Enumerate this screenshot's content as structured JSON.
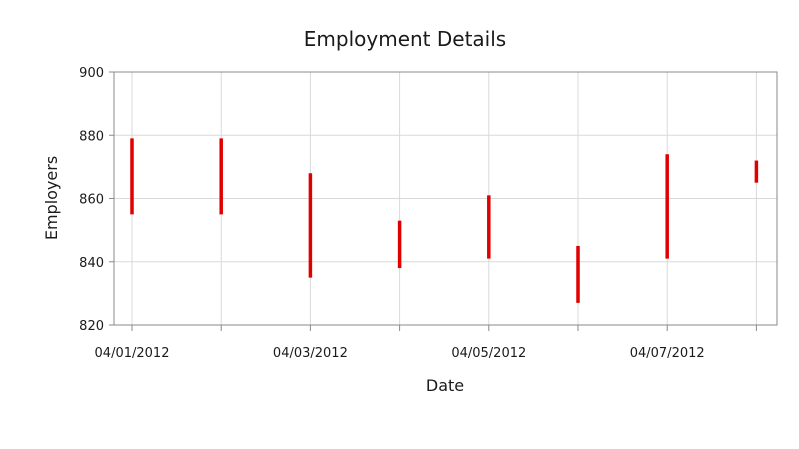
{
  "chart_data": {
    "type": "range-bar",
    "title": "Employment Details",
    "xlabel": "Date",
    "ylabel": "Employers",
    "x": [
      "04/01/2012",
      "04/02/2012",
      "04/03/2012",
      "04/04/2012",
      "04/05/2012",
      "04/06/2012",
      "04/07/2012",
      "04/08/2012"
    ],
    "x_tick_labels": [
      "04/01/2012",
      "",
      "04/03/2012",
      "",
      "04/05/2012",
      "",
      "04/07/2012",
      ""
    ],
    "series": [
      {
        "low": [
          855,
          855,
          835,
          838,
          841,
          827,
          841,
          865
        ],
        "high": [
          879,
          879,
          868,
          853,
          861,
          845,
          874,
          872
        ]
      }
    ],
    "ylim": [
      820,
      900
    ],
    "y_ticks": [
      "820",
      "840",
      "860",
      "880",
      "900"
    ],
    "grid": true,
    "bar_color": "#e00000"
  }
}
